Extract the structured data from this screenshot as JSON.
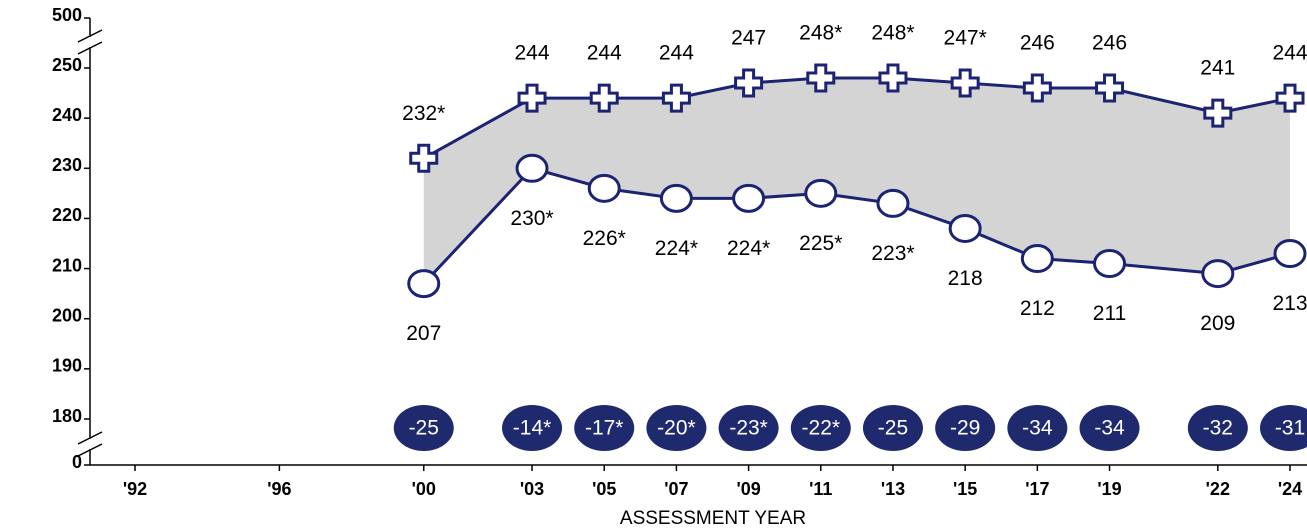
{
  "chart_data": {
    "type": "line",
    "x_label": "ASSESSMENT YEAR",
    "x": [
      2000,
      2003,
      2005,
      2007,
      2009,
      2011,
      2013,
      2015,
      2017,
      2019,
      2022,
      2024
    ],
    "xticks": [
      {
        "value": 1992,
        "label": "'92"
      },
      {
        "value": 1996,
        "label": "'96"
      },
      {
        "value": 2000,
        "label": "'00"
      },
      {
        "value": 2003,
        "label": "'03"
      },
      {
        "value": 2005,
        "label": "'05"
      },
      {
        "value": 2007,
        "label": "'07"
      },
      {
        "value": 2009,
        "label": "'09"
      },
      {
        "value": 2011,
        "label": "'11"
      },
      {
        "value": 2013,
        "label": "'13"
      },
      {
        "value": 2015,
        "label": "'15"
      },
      {
        "value": 2017,
        "label": "'17"
      },
      {
        "value": 2019,
        "label": "'19"
      },
      {
        "value": 2022,
        "label": "'22"
      },
      {
        "value": 2024,
        "label": "'24"
      }
    ],
    "ylim": [
      180,
      250
    ],
    "yticks": [
      0,
      180,
      190,
      200,
      210,
      220,
      230,
      240,
      250,
      500
    ],
    "axis_break": true,
    "series": [
      {
        "marker": "plus",
        "color": "#1c2373",
        "values": [
          232,
          244,
          244,
          244,
          247,
          248,
          248,
          247,
          246,
          246,
          241,
          244
        ],
        "value_labels": [
          "232*",
          "244",
          "244",
          "244",
          "247",
          "248*",
          "248*",
          "247*",
          "246",
          "246",
          "241",
          "244"
        ]
      },
      {
        "marker": "circle",
        "color": "#1c2373",
        "values": [
          207,
          230,
          226,
          224,
          224,
          225,
          223,
          218,
          212,
          211,
          209,
          213
        ],
        "value_labels": [
          "207",
          "230*",
          "226*",
          "224*",
          "224*",
          "225*",
          "223*",
          "218",
          "212",
          "211",
          "209",
          "213"
        ]
      }
    ],
    "gap": {
      "color": "#1f2a6e",
      "values": [
        -25,
        -14,
        -17,
        -20,
        -23,
        -22,
        -25,
        -29,
        -34,
        -34,
        -32,
        -31
      ],
      "value_labels": [
        "-25",
        "-14*",
        "-17*",
        "-20*",
        "-23*",
        "-22*",
        "-25",
        "-29",
        "-34",
        "-34",
        "-32",
        "-31"
      ]
    }
  }
}
